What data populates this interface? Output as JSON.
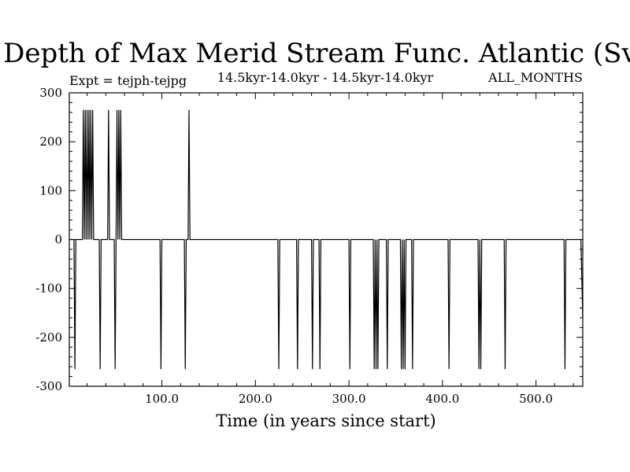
{
  "chart_data": {
    "type": "line",
    "title": "Depth of Max Merid Stream Func. Atlantic (Sv)",
    "subtitle_left": "Expt = tejph-tejpg",
    "subtitle_center": "14.5kyr-14.0kyr - 14.5kyr-14.0kyr",
    "subtitle_right": "ALL_MONTHS",
    "xlabel": "Time (in years since start)",
    "ylabel": "",
    "xlim": [
      1,
      550
    ],
    "ylim": [
      -300,
      300
    ],
    "xticks": [
      100,
      200,
      300,
      400,
      500
    ],
    "xtick_labels": [
      "100.0",
      "200.0",
      "300.0",
      "400.0",
      "500.0"
    ],
    "yticks": [
      -300,
      -200,
      -100,
      0,
      100,
      200,
      300
    ],
    "ytick_labels": [
      "-300",
      "-200",
      "-100",
      "0",
      "100",
      "200",
      "300"
    ],
    "grid": false,
    "series": [
      {
        "x": [
          1,
          6,
          7,
          8,
          15,
          16,
          17,
          18,
          19,
          20,
          21,
          22,
          23,
          24,
          25,
          26,
          27,
          33,
          34,
          35,
          42,
          43,
          44,
          49,
          50,
          51,
          52,
          53,
          54,
          55,
          56,
          57,
          98,
          99,
          100,
          124,
          125,
          126,
          128,
          129,
          130,
          224,
          225,
          226,
          244,
          245,
          246,
          260,
          261,
          262,
          268,
          269,
          270,
          300,
          301,
          302,
          326,
          327,
          328,
          329,
          330,
          331,
          332,
          333,
          340,
          341,
          342,
          355,
          356,
          357,
          358,
          359,
          360,
          361,
          367,
          368,
          369,
          406,
          407,
          408,
          438,
          439,
          440,
          441,
          442,
          466,
          467,
          468,
          530,
          531,
          532,
          547,
          548,
          550
        ],
        "y": [
          0,
          0,
          -265,
          0,
          0,
          265,
          0,
          265,
          0,
          265,
          0,
          265,
          0,
          265,
          0,
          265,
          0,
          0,
          -265,
          0,
          0,
          265,
          0,
          0,
          -265,
          0,
          265,
          0,
          265,
          0,
          265,
          0,
          0,
          -265,
          0,
          0,
          -265,
          0,
          0,
          265,
          0,
          0,
          -265,
          0,
          0,
          -265,
          0,
          0,
          -265,
          0,
          0,
          -265,
          0,
          0,
          -265,
          0,
          0,
          -265,
          0,
          -265,
          0,
          -265,
          0,
          0,
          0,
          -265,
          0,
          0,
          -265,
          0,
          -265,
          0,
          -265,
          0,
          0,
          -265,
          0,
          0,
          -265,
          0,
          0,
          -265,
          0,
          -265,
          0,
          0,
          -265,
          0,
          0,
          -265,
          0,
          0,
          0,
          -160
        ]
      }
    ]
  }
}
